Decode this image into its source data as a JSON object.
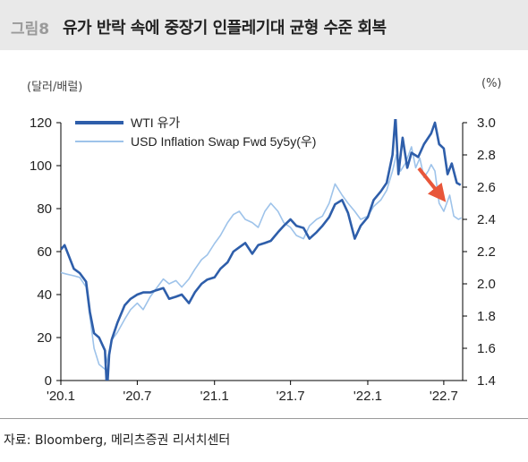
{
  "header": {
    "number": "그림8",
    "title": "유가 반락 속에 중장기 인플레기대 균형 수준 회복"
  },
  "units": {
    "left": "(달러/배럴)",
    "right": "(%)"
  },
  "source": "자료: Bloomberg, 메리츠증권 리서치센터",
  "colors": {
    "wti": "#2e5eaa",
    "inflation": "#9ec3ea",
    "arrow": "#e8563a",
    "axis": "#000000"
  },
  "chart_data": {
    "type": "line",
    "x_ticks": [
      "'20.1",
      "'20.7",
      "'21.1",
      "'21.7",
      "'22.1",
      "'22.7"
    ],
    "y_left": {
      "ticks": [
        "0",
        "20",
        "40",
        "60",
        "80",
        "100",
        "120"
      ],
      "range": [
        0,
        120
      ]
    },
    "y_right": {
      "ticks": [
        "1.4",
        "1.6",
        "1.8",
        "2.0",
        "2.2",
        "2.4",
        "2.6",
        "2.8",
        "3.0"
      ],
      "range": [
        1.4,
        3.0
      ]
    },
    "x_range": [
      "2020-01-01",
      "2022-08-15"
    ],
    "series": [
      {
        "name": "WTI 유가",
        "axis": "left",
        "points": [
          [
            "2020-01-01",
            61
          ],
          [
            "2020-01-10",
            63
          ],
          [
            "2020-01-20",
            58
          ],
          [
            "2020-02-01",
            52
          ],
          [
            "2020-02-15",
            50
          ],
          [
            "2020-03-01",
            46
          ],
          [
            "2020-03-10",
            32
          ],
          [
            "2020-03-20",
            22
          ],
          [
            "2020-04-01",
            20
          ],
          [
            "2020-04-15",
            14
          ],
          [
            "2020-04-20",
            -5
          ],
          [
            "2020-04-25",
            12
          ],
          [
            "2020-05-01",
            19
          ],
          [
            "2020-05-15",
            27
          ],
          [
            "2020-06-01",
            35
          ],
          [
            "2020-06-15",
            38
          ],
          [
            "2020-07-01",
            40
          ],
          [
            "2020-07-15",
            41
          ],
          [
            "2020-08-01",
            41
          ],
          [
            "2020-08-15",
            42
          ],
          [
            "2020-09-01",
            43
          ],
          [
            "2020-09-15",
            38
          ],
          [
            "2020-10-01",
            39
          ],
          [
            "2020-10-15",
            40
          ],
          [
            "2020-11-01",
            36
          ],
          [
            "2020-11-15",
            41
          ],
          [
            "2020-12-01",
            45
          ],
          [
            "2020-12-15",
            47
          ],
          [
            "2021-01-01",
            48
          ],
          [
            "2021-01-15",
            52
          ],
          [
            "2021-02-01",
            55
          ],
          [
            "2021-02-15",
            60
          ],
          [
            "2021-03-01",
            62
          ],
          [
            "2021-03-15",
            64
          ],
          [
            "2021-04-01",
            59
          ],
          [
            "2021-04-15",
            63
          ],
          [
            "2021-05-01",
            64
          ],
          [
            "2021-05-15",
            65
          ],
          [
            "2021-06-01",
            69
          ],
          [
            "2021-06-15",
            72
          ],
          [
            "2021-07-01",
            75
          ],
          [
            "2021-07-15",
            72
          ],
          [
            "2021-08-01",
            71
          ],
          [
            "2021-08-15",
            66
          ],
          [
            "2021-09-01",
            69
          ],
          [
            "2021-09-15",
            72
          ],
          [
            "2021-10-01",
            76
          ],
          [
            "2021-10-15",
            82
          ],
          [
            "2021-11-01",
            84
          ],
          [
            "2021-11-15",
            78
          ],
          [
            "2021-12-01",
            66
          ],
          [
            "2021-12-15",
            72
          ],
          [
            "2022-01-01",
            76
          ],
          [
            "2022-01-15",
            84
          ],
          [
            "2022-02-01",
            88
          ],
          [
            "2022-02-15",
            92
          ],
          [
            "2022-03-01",
            105
          ],
          [
            "2022-03-08",
            123
          ],
          [
            "2022-03-15",
            96
          ],
          [
            "2022-03-25",
            113
          ],
          [
            "2022-04-05",
            99
          ],
          [
            "2022-04-15",
            106
          ],
          [
            "2022-05-01",
            104
          ],
          [
            "2022-05-15",
            110
          ],
          [
            "2022-06-01",
            115
          ],
          [
            "2022-06-10",
            120
          ],
          [
            "2022-06-20",
            110
          ],
          [
            "2022-07-01",
            108
          ],
          [
            "2022-07-10",
            96
          ],
          [
            "2022-07-20",
            101
          ],
          [
            "2022-08-01",
            92
          ],
          [
            "2022-08-10",
            91
          ]
        ]
      },
      {
        "name": "USD Inflation  Swap Fwd 5y5y(우)",
        "axis": "right",
        "points": [
          [
            "2020-01-01",
            2.07
          ],
          [
            "2020-01-15",
            2.06
          ],
          [
            "2020-02-01",
            2.05
          ],
          [
            "2020-02-15",
            2.04
          ],
          [
            "2020-03-01",
            1.98
          ],
          [
            "2020-03-10",
            1.8
          ],
          [
            "2020-03-20",
            1.6
          ],
          [
            "2020-04-01",
            1.5
          ],
          [
            "2020-04-15",
            1.47
          ],
          [
            "2020-05-01",
            1.65
          ],
          [
            "2020-05-15",
            1.7
          ],
          [
            "2020-06-01",
            1.78
          ],
          [
            "2020-06-15",
            1.84
          ],
          [
            "2020-07-01",
            1.88
          ],
          [
            "2020-07-15",
            1.84
          ],
          [
            "2020-08-01",
            1.92
          ],
          [
            "2020-08-15",
            1.97
          ],
          [
            "2020-09-01",
            2.03
          ],
          [
            "2020-09-15",
            2.0
          ],
          [
            "2020-10-01",
            2.02
          ],
          [
            "2020-10-15",
            1.98
          ],
          [
            "2020-11-01",
            2.03
          ],
          [
            "2020-11-15",
            2.09
          ],
          [
            "2020-12-01",
            2.15
          ],
          [
            "2020-12-15",
            2.18
          ],
          [
            "2021-01-01",
            2.25
          ],
          [
            "2021-01-15",
            2.3
          ],
          [
            "2021-02-01",
            2.38
          ],
          [
            "2021-02-15",
            2.43
          ],
          [
            "2021-03-01",
            2.45
          ],
          [
            "2021-03-15",
            2.4
          ],
          [
            "2021-04-01",
            2.38
          ],
          [
            "2021-04-15",
            2.35
          ],
          [
            "2021-05-01",
            2.45
          ],
          [
            "2021-05-15",
            2.5
          ],
          [
            "2021-06-01",
            2.45
          ],
          [
            "2021-06-15",
            2.38
          ],
          [
            "2021-07-01",
            2.35
          ],
          [
            "2021-07-15",
            2.3
          ],
          [
            "2021-08-01",
            2.28
          ],
          [
            "2021-08-15",
            2.36
          ],
          [
            "2021-09-01",
            2.4
          ],
          [
            "2021-09-15",
            2.42
          ],
          [
            "2021-10-01",
            2.5
          ],
          [
            "2021-10-15",
            2.62
          ],
          [
            "2021-11-01",
            2.55
          ],
          [
            "2021-11-15",
            2.5
          ],
          [
            "2021-12-01",
            2.45
          ],
          [
            "2021-12-15",
            2.4
          ],
          [
            "2022-01-01",
            2.42
          ],
          [
            "2022-01-15",
            2.48
          ],
          [
            "2022-02-01",
            2.52
          ],
          [
            "2022-02-15",
            2.58
          ],
          [
            "2022-03-01",
            2.7
          ],
          [
            "2022-03-10",
            2.8
          ],
          [
            "2022-03-20",
            2.7
          ],
          [
            "2022-04-01",
            2.75
          ],
          [
            "2022-04-15",
            2.85
          ],
          [
            "2022-04-25",
            2.72
          ],
          [
            "2022-05-05",
            2.78
          ],
          [
            "2022-05-15",
            2.66
          ],
          [
            "2022-05-25",
            2.7
          ],
          [
            "2022-06-01",
            2.74
          ],
          [
            "2022-06-10",
            2.7
          ],
          [
            "2022-06-20",
            2.5
          ],
          [
            "2022-07-01",
            2.45
          ],
          [
            "2022-07-15",
            2.55
          ],
          [
            "2022-07-25",
            2.42
          ],
          [
            "2022-08-05",
            2.4
          ],
          [
            "2022-08-12",
            2.41
          ]
        ]
      }
    ],
    "legend_position": "top-left",
    "grid": false,
    "annotation": "downward arrow near the end of the series"
  }
}
